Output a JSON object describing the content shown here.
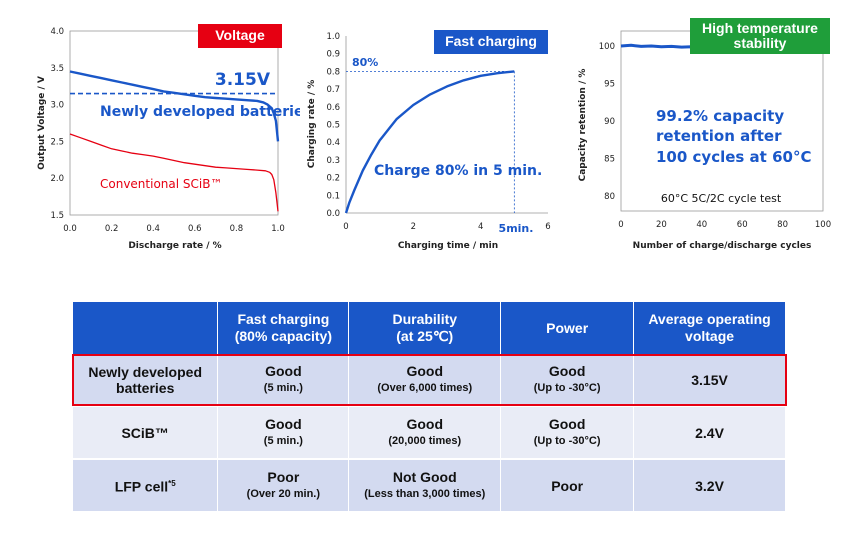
{
  "chart_data": [
    {
      "type": "line",
      "badge": "Voltage",
      "xlabel": "Discharge rate / %",
      "ylabel": "Output Voltage / V",
      "xlim": [
        0,
        1
      ],
      "ylim": [
        1.5,
        4.0
      ],
      "xticks": [
        "0.0",
        "0.2",
        "0.4",
        "0.6",
        "0.8",
        "1.0"
      ],
      "yticks": [
        "1.5",
        "2.0",
        "2.5",
        "3.0",
        "3.5",
        "4.0"
      ],
      "grid": false,
      "series": [
        {
          "name": "Newly developed batteries",
          "color": "#1a57c8",
          "x": [
            0.0,
            0.05,
            0.1,
            0.15,
            0.2,
            0.25,
            0.3,
            0.35,
            0.4,
            0.45,
            0.5,
            0.55,
            0.6,
            0.65,
            0.7,
            0.75,
            0.8,
            0.85,
            0.9,
            0.93,
            0.95,
            0.97,
            0.98,
            0.99,
            1.0
          ],
          "y": [
            3.45,
            3.42,
            3.39,
            3.36,
            3.33,
            3.3,
            3.27,
            3.24,
            3.21,
            3.18,
            3.16,
            3.14,
            3.12,
            3.1,
            3.09,
            3.08,
            3.07,
            3.06,
            3.05,
            3.03,
            3.0,
            2.95,
            2.88,
            2.78,
            2.5
          ]
        },
        {
          "name": "Conventional SCiB™",
          "color": "#e60012",
          "x": [
            0.0,
            0.05,
            0.1,
            0.15,
            0.2,
            0.25,
            0.3,
            0.35,
            0.4,
            0.45,
            0.5,
            0.55,
            0.6,
            0.65,
            0.7,
            0.75,
            0.8,
            0.85,
            0.9,
            0.94,
            0.96,
            0.97,
            0.98,
            0.99,
            1.0
          ],
          "y": [
            2.6,
            2.55,
            2.5,
            2.45,
            2.4,
            2.37,
            2.34,
            2.32,
            2.3,
            2.27,
            2.24,
            2.21,
            2.19,
            2.17,
            2.15,
            2.14,
            2.13,
            2.12,
            2.11,
            2.1,
            2.08,
            2.05,
            1.98,
            1.8,
            1.55
          ]
        }
      ],
      "reference_line": {
        "y": 3.15,
        "label": "3.15V"
      }
    },
    {
      "type": "line",
      "badge": "Fast charging",
      "xlabel": "Charging time / min",
      "ylabel": "Charging rate / %",
      "xlim": [
        0,
        6
      ],
      "ylim": [
        0,
        1.0
      ],
      "xticks": [
        "0",
        "2",
        "4",
        "6"
      ],
      "yticks": [
        "0.0",
        "0.1",
        "0.2",
        "0.3",
        "0.4",
        "0.5",
        "0.6",
        "0.7",
        "0.8",
        "0.9",
        "1.0"
      ],
      "grid": false,
      "series": [
        {
          "name": "",
          "color": "#1a57c8",
          "x": [
            0.0,
            0.1,
            0.25,
            0.5,
            0.75,
            1.0,
            1.5,
            2.0,
            2.5,
            3.0,
            3.5,
            4.0,
            4.5,
            5.0
          ],
          "y": [
            0.0,
            0.06,
            0.13,
            0.24,
            0.33,
            0.41,
            0.53,
            0.61,
            0.67,
            0.715,
            0.75,
            0.775,
            0.79,
            0.8
          ]
        }
      ],
      "marker": {
        "x_label": "5min.",
        "y_label": "80%",
        "x": 5,
        "y": 0.8
      },
      "annotation": "Charge 80% in 5 min."
    },
    {
      "type": "line",
      "badge": "High temperature stability",
      "xlabel": "Number of charge/discharge cycles",
      "ylabel": "Capacity retention / %",
      "xlim": [
        0,
        100
      ],
      "ylim": [
        78,
        102
      ],
      "xticks": [
        "0",
        "20",
        "40",
        "60",
        "80",
        "100"
      ],
      "yticks": [
        "80",
        "85",
        "90",
        "95",
        "100"
      ],
      "grid": false,
      "series": [
        {
          "name": "",
          "color": "#1a57c8",
          "x": [
            0,
            5,
            10,
            15,
            20,
            25,
            30,
            35,
            40,
            45,
            50,
            55,
            60,
            65,
            70,
            75,
            80,
            85,
            90,
            95,
            100
          ],
          "y": [
            100.0,
            100.1,
            99.95,
            100.0,
            99.9,
            99.95,
            99.85,
            99.9,
            99.8,
            99.85,
            99.75,
            99.8,
            99.7,
            99.7,
            99.6,
            99.65,
            99.55,
            99.5,
            99.45,
            99.4,
            99.2
          ]
        }
      ],
      "annotation_lines": [
        "99.2% capacity",
        "retention after",
        "100 cycles at 60°C"
      ],
      "note": "60°C 5C/2C cycle test"
    }
  ],
  "table": {
    "headers": [
      "",
      "Fast charging\n(80% capacity)",
      "Durability\n(at 25℃)",
      "Power",
      "Average operating\nvoltage"
    ],
    "rows": [
      {
        "name": "Newly developed batteries",
        "fast": "Good",
        "fast_sub": "(5 min.)",
        "dur": "Good",
        "dur_sub": "(Over 6,000 times)",
        "power": "Good",
        "power_sub": "(Up to -30°C)",
        "voltage": "3.15V"
      },
      {
        "name": "SCiB™",
        "fast": "Good",
        "fast_sub": "(5 min.)",
        "dur": "Good",
        "dur_sub": "(20,000 times)",
        "power": "Good",
        "power_sub": "(Up to -30°C)",
        "voltage": "2.4V"
      },
      {
        "name": "LFP cell",
        "name_sup": "*5",
        "fast": "Poor",
        "fast_sub": "(Over 20 min.)",
        "dur": "Not Good",
        "dur_sub": "(Less than 3,000 times)",
        "power": "Poor",
        "power_sub": "",
        "voltage": "3.2V"
      }
    ],
    "colors": {
      "header": "#1a57c8",
      "row_dark": "#d3daf0",
      "row_light": "#e9ecf6",
      "highlight": "#e60012"
    }
  }
}
